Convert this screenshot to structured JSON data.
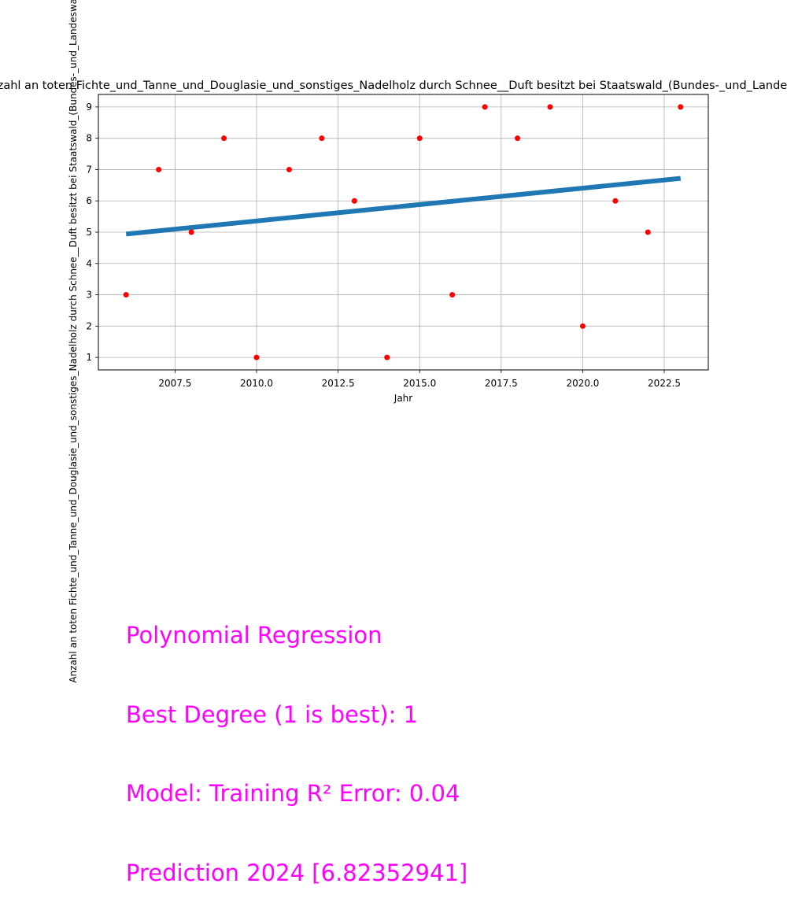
{
  "chart_data": {
    "type": "scatter",
    "title": "Anzahl an toten Fichte_und_Tanne_und_Douglasie_und_sonstiges_Nadelholz durch Schnee__Duft besitzt bei Staatswald_(Bundes-_und_Landeswald)",
    "xlabel": "Jahr",
    "ylabel": "Anzahl an toten Fichte_und_Tanne_und_Douglasie_und_sonstiges_Nadelholz durch Schnee__Duft besitzt bei Staatswald_(Bundes-_und_Landeswald)",
    "xlim": [
      2005.15,
      2023.85
    ],
    "ylim": [
      0.6,
      9.4
    ],
    "xticks": [
      "2007.5",
      "2010.0",
      "2012.5",
      "2015.0",
      "2017.5",
      "2020.0",
      "2022.5"
    ],
    "xtick_values": [
      2007.5,
      2010.0,
      2012.5,
      2015.0,
      2017.5,
      2020.0,
      2022.5
    ],
    "yticks": [
      "1",
      "2",
      "3",
      "4",
      "5",
      "6",
      "7",
      "8",
      "9"
    ],
    "ytick_values": [
      1,
      2,
      3,
      4,
      5,
      6,
      7,
      8,
      9
    ],
    "grid": true,
    "series": [
      {
        "type": "scatter",
        "color": "#ff0000",
        "x": [
          2006,
          2007,
          2008,
          2009,
          2010,
          2011,
          2012,
          2013,
          2014,
          2015,
          2016,
          2017,
          2018,
          2019,
          2020,
          2021,
          2022,
          2023
        ],
        "y": [
          3,
          7,
          5,
          8,
          1,
          7,
          8,
          6,
          1,
          8,
          3,
          9,
          8,
          9,
          2,
          6,
          5,
          9
        ]
      },
      {
        "type": "line",
        "color": "#1f77b4",
        "x": [
          2006,
          2023
        ],
        "y": [
          4.94,
          6.72
        ]
      }
    ]
  },
  "annotation": {
    "line1": "Polynomial Regression",
    "line2": "Best Degree (1 is best): 1",
    "line3": "Model: Training R² Error: 0.04",
    "line4": "Prediction 2024 [6.82352941]",
    "color": "#ff00ff"
  }
}
